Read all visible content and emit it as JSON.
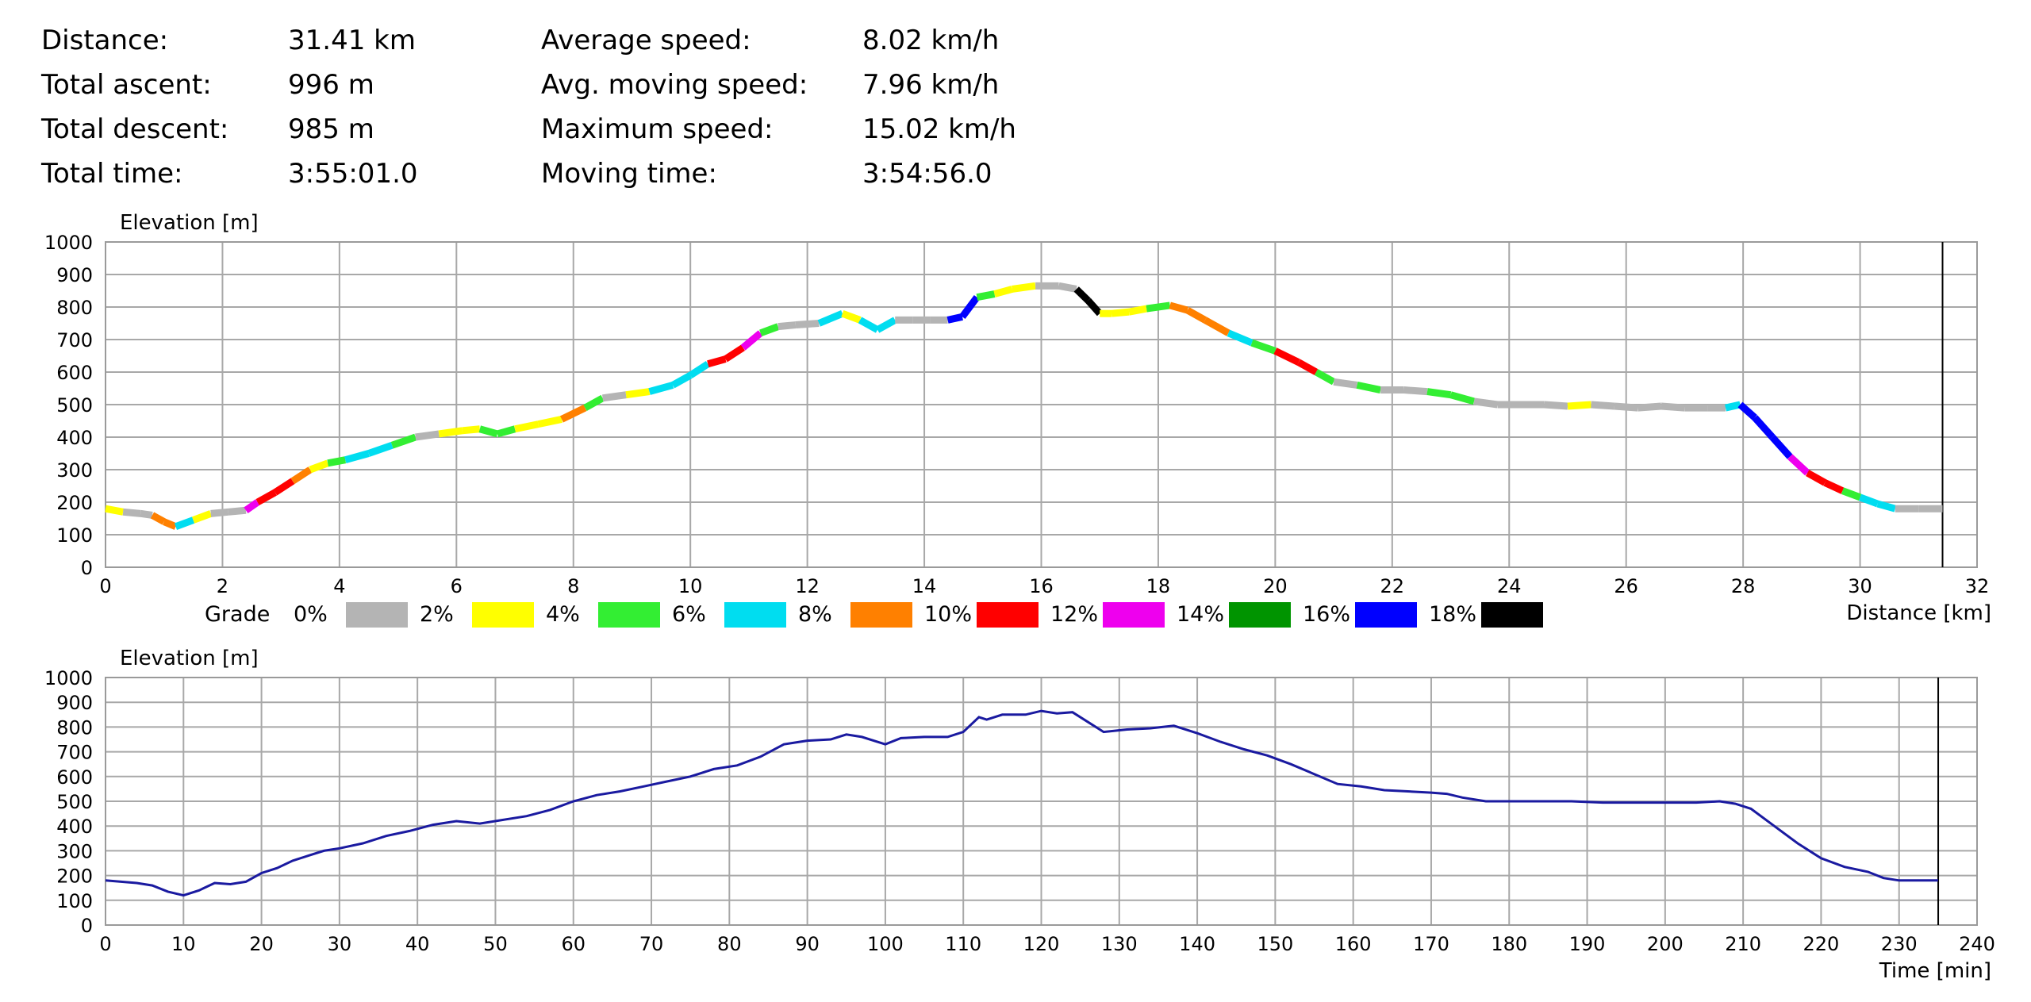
{
  "stats": {
    "rows": [
      {
        "label": "Distance:",
        "value": "31.41 km",
        "label2": "Average speed:",
        "value2": "8.02 km/h"
      },
      {
        "label": "Total ascent:",
        "value": "996 m",
        "label2": "Avg. moving speed:",
        "value2": "7.96 km/h"
      },
      {
        "label": "Total descent:",
        "value": "985 m",
        "label2": "Maximum speed:",
        "value2": "15.02 km/h"
      },
      {
        "label": "Total time:",
        "value": "3:55:01.0",
        "label2": "Moving time:",
        "value2": "3:54:56.0"
      }
    ]
  },
  "chart_data": [
    {
      "type": "line",
      "ylabel": "Elevation [m]",
      "xlabel": "Distance [km]",
      "xlim": [
        0,
        32
      ],
      "ylim": [
        0,
        1000
      ],
      "xticks": [
        0,
        2,
        4,
        6,
        8,
        10,
        12,
        14,
        16,
        18,
        20,
        22,
        24,
        26,
        28,
        30,
        32
      ],
      "yticks": [
        0,
        100,
        200,
        300,
        400,
        500,
        600,
        700,
        800,
        900,
        1000
      ],
      "grid": true,
      "end_marker_x": 31.41,
      "colored_by": "grade",
      "legend": {
        "title": "Grade",
        "entries": [
          {
            "label": "0%",
            "color": "#b4b4b4"
          },
          {
            "label": "2%",
            "color": "#ffff00"
          },
          {
            "label": "4%",
            "color": "#33ee33"
          },
          {
            "label": "6%",
            "color": "#00ddf0"
          },
          {
            "label": "8%",
            "color": "#ff8000"
          },
          {
            "label": "10%",
            "color": "#ff0000"
          },
          {
            "label": "12%",
            "color": "#ee00ee"
          },
          {
            "label": "14%",
            "color": "#009400"
          },
          {
            "label": "16%",
            "color": "#0000ff"
          },
          {
            "label": "18%",
            "color": "#000000"
          }
        ]
      },
      "x": [
        0,
        0.3,
        0.6,
        0.8,
        1.0,
        1.2,
        1.5,
        1.8,
        2.1,
        2.4,
        2.6,
        2.9,
        3.2,
        3.5,
        3.8,
        4.1,
        4.5,
        4.9,
        5.3,
        5.7,
        6.1,
        6.4,
        6.7,
        7.0,
        7.4,
        7.8,
        8.2,
        8.5,
        8.9,
        9.3,
        9.7,
        10.0,
        10.3,
        10.6,
        10.9,
        11.2,
        11.5,
        11.8,
        12.2,
        12.6,
        12.9,
        13.2,
        13.5,
        13.8,
        14.1,
        14.4,
        14.65,
        14.9,
        15.2,
        15.5,
        15.9,
        16.3,
        16.6,
        16.8,
        17.0,
        17.2,
        17.5,
        17.8,
        18.2,
        18.5,
        18.8,
        19.2,
        19.6,
        20.0,
        20.4,
        20.7,
        21.0,
        21.4,
        21.8,
        22.2,
        22.6,
        23.0,
        23.4,
        23.8,
        24.2,
        24.6,
        25.0,
        25.4,
        25.8,
        26.2,
        26.6,
        27.0,
        27.4,
        27.7,
        27.95,
        28.2,
        28.5,
        28.8,
        29.1,
        29.4,
        29.7,
        30.0,
        30.3,
        30.6,
        31.0,
        31.41
      ],
      "y": [
        180,
        170,
        165,
        160,
        140,
        125,
        145,
        165,
        170,
        175,
        200,
        230,
        265,
        300,
        320,
        330,
        350,
        375,
        400,
        410,
        420,
        425,
        410,
        425,
        440,
        455,
        490,
        520,
        530,
        540,
        560,
        590,
        625,
        640,
        675,
        720,
        740,
        745,
        750,
        780,
        760,
        730,
        760,
        760,
        760,
        760,
        770,
        830,
        840,
        855,
        865,
        865,
        855,
        820,
        780,
        780,
        785,
        795,
        805,
        790,
        760,
        720,
        690,
        665,
        630,
        600,
        570,
        560,
        545,
        545,
        540,
        530,
        510,
        500,
        500,
        500,
        495,
        500,
        495,
        490,
        495,
        490,
        490,
        490,
        500,
        460,
        400,
        340,
        290,
        260,
        235,
        215,
        195,
        180,
        180,
        180
      ],
      "segment_grades": [
        "2%",
        "0%",
        "0%",
        "8%",
        "8%",
        "6%",
        "2%",
        "0%",
        "0%",
        "12%",
        "10%",
        "10%",
        "8%",
        "2%",
        "4%",
        "6%",
        "6%",
        "4%",
        "0%",
        "2%",
        "2%",
        "4%",
        "4%",
        "2%",
        "2%",
        "8%",
        "4%",
        "0%",
        "2%",
        "6%",
        "6%",
        "6%",
        "10%",
        "10%",
        "12%",
        "4%",
        "0%",
        "0%",
        "6%",
        "2%",
        "6%",
        "6%",
        "0%",
        "0%",
        "0%",
        "16%",
        "16%",
        "4%",
        "2%",
        "2%",
        "0%",
        "0%",
        "18%",
        "18%",
        "2%",
        "2%",
        "2%",
        "4%",
        "8%",
        "8%",
        "8%",
        "6%",
        "4%",
        "10%",
        "10%",
        "4%",
        "0%",
        "4%",
        "0%",
        "0%",
        "4%",
        "4%",
        "0%",
        "0%",
        "0%",
        "0%",
        "2%",
        "0%",
        "0%",
        "0%",
        "0%",
        "0%",
        "0%",
        "6%",
        "16%",
        "16%",
        "16%",
        "12%",
        "10%",
        "10%",
        "4%",
        "6%",
        "6%",
        "0%",
        "0%"
      ]
    },
    {
      "type": "line",
      "ylabel": "Elevation [m]",
      "xlabel": "Time [min]",
      "xlim": [
        0,
        240
      ],
      "ylim": [
        0,
        1000
      ],
      "xticks": [
        0,
        10,
        20,
        30,
        40,
        50,
        60,
        70,
        80,
        90,
        100,
        110,
        120,
        130,
        140,
        150,
        160,
        170,
        180,
        190,
        200,
        210,
        220,
        230,
        240
      ],
      "yticks": [
        0,
        100,
        200,
        300,
        400,
        500,
        600,
        700,
        800,
        900,
        1000
      ],
      "grid": true,
      "line_color": "#1a1aa0",
      "end_marker_x": 235.02,
      "x": [
        0,
        2,
        4,
        6,
        8,
        10,
        12,
        14,
        16,
        18,
        20,
        22,
        24,
        26,
        28,
        30,
        33,
        36,
        39,
        42,
        45,
        48,
        51,
        54,
        57,
        60,
        63,
        66,
        69,
        72,
        75,
        78,
        81,
        84,
        87,
        90,
        93,
        95,
        97,
        100,
        102,
        105,
        108,
        110,
        112,
        113,
        115,
        118,
        120,
        122,
        124,
        126,
        128,
        131,
        134,
        137,
        140,
        143,
        146,
        149,
        152,
        155,
        158,
        161,
        164,
        167,
        170,
        172,
        174,
        177,
        180,
        184,
        188,
        192,
        196,
        200,
        204,
        207,
        209,
        211,
        214,
        217,
        220,
        223,
        226,
        228,
        230,
        233,
        235
      ],
      "y": [
        180,
        175,
        170,
        160,
        135,
        120,
        140,
        170,
        165,
        175,
        210,
        230,
        260,
        280,
        300,
        310,
        330,
        360,
        380,
        405,
        420,
        410,
        425,
        440,
        465,
        500,
        525,
        540,
        560,
        580,
        600,
        630,
        645,
        680,
        730,
        745,
        750,
        770,
        760,
        730,
        755,
        760,
        760,
        780,
        840,
        830,
        850,
        850,
        865,
        855,
        860,
        820,
        780,
        790,
        795,
        805,
        775,
        740,
        710,
        685,
        650,
        610,
        570,
        560,
        545,
        540,
        535,
        530,
        515,
        500,
        500,
        500,
        500,
        495,
        495,
        495,
        495,
        500,
        490,
        470,
        400,
        330,
        270,
        235,
        215,
        190,
        180,
        180,
        180
      ]
    }
  ]
}
